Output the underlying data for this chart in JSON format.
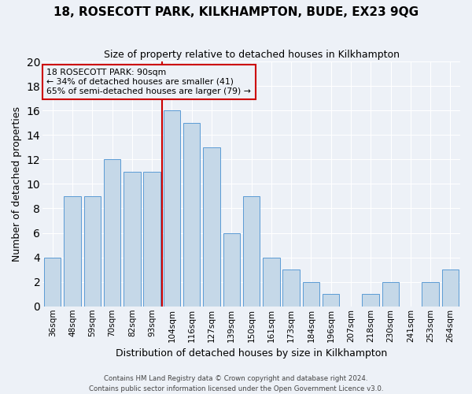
{
  "title": "18, ROSECOTT PARK, KILKHAMPTON, BUDE, EX23 9QG",
  "subtitle": "Size of property relative to detached houses in Kilkhampton",
  "xlabel": "Distribution of detached houses by size in Kilkhampton",
  "ylabel": "Number of detached properties",
  "categories": [
    "36sqm",
    "48sqm",
    "59sqm",
    "70sqm",
    "82sqm",
    "93sqm",
    "104sqm",
    "116sqm",
    "127sqm",
    "139sqm",
    "150sqm",
    "161sqm",
    "173sqm",
    "184sqm",
    "196sqm",
    "207sqm",
    "218sqm",
    "230sqm",
    "241sqm",
    "253sqm",
    "264sqm"
  ],
  "values": [
    4,
    9,
    9,
    12,
    11,
    11,
    16,
    15,
    13,
    6,
    9,
    4,
    3,
    2,
    1,
    0,
    1,
    2,
    0,
    2,
    3
  ],
  "bar_color": "#c5d8e8",
  "bar_edge_color": "#5b9bd5",
  "ylim": [
    0,
    20
  ],
  "yticks": [
    0,
    2,
    4,
    6,
    8,
    10,
    12,
    14,
    16,
    18,
    20
  ],
  "property_label": "18 ROSECOTT PARK: 90sqm",
  "annotation_line1": "← 34% of detached houses are smaller (41)",
  "annotation_line2": "65% of semi-detached houses are larger (79) →",
  "vline_x": 5.5,
  "vline_color": "#cc0000",
  "annotation_box_color": "#cc0000",
  "footer_line1": "Contains HM Land Registry data © Crown copyright and database right 2024.",
  "footer_line2": "Contains public sector information licensed under the Open Government Licence v3.0.",
  "background_color": "#edf1f7",
  "grid_color": "#ffffff"
}
